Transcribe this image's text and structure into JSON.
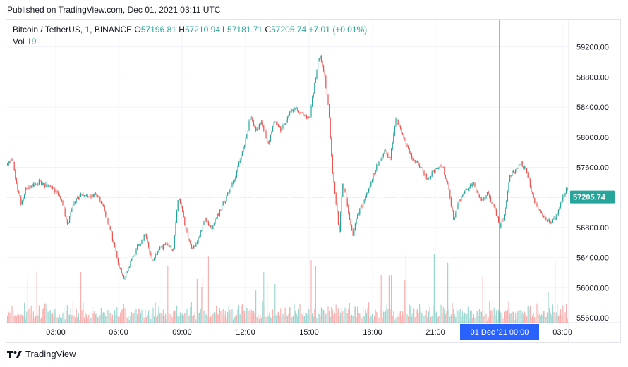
{
  "published": "Published on TradingView.com, Dec 01, 2021 03:11 UTC",
  "legend": {
    "symbol": "Bitcoin / TetherUS, 1, BINANCE",
    "o_label": "O",
    "o": "57196.81",
    "h_label": "H",
    "h": "57210.94",
    "l_label": "L",
    "l": "57181.71",
    "c_label": "C",
    "c": "57205.74",
    "change": "+7.01 (+0.01%)",
    "vol_label": "Vol",
    "vol": "19"
  },
  "colors": {
    "up": "#26a69a",
    "down": "#ef5350",
    "crosshair": "#2962ff",
    "price_tag": "#26a69a",
    "time_tag": "#2962ff"
  },
  "price_tag": "57205.74",
  "time_tag": "01 Dec '21   00:00",
  "footer": {
    "brand": "TradingView",
    "logo_icon": "tradingview-logo-icon"
  },
  "chart_data": {
    "type": "candlestick",
    "y_ticks": [
      "55600.00",
      "56000.00",
      "56400.00",
      "56800.00",
      "57200.00",
      "57600.00",
      "58000.00",
      "58400.00",
      "58800.00",
      "59200.00"
    ],
    "x_ticks": [
      "03:00",
      "06:00",
      "09:00",
      "12:00",
      "15:00",
      "18:00",
      "21:00",
      "03:00"
    ],
    "ylim": [
      55500,
      59400
    ],
    "last_price": 57205.74,
    "path": [
      [
        0,
        57650
      ],
      [
        8,
        57700
      ],
      [
        12,
        57400
      ],
      [
        20,
        57100
      ],
      [
        25,
        57300
      ],
      [
        35,
        57350
      ],
      [
        45,
        57400
      ],
      [
        55,
        57350
      ],
      [
        65,
        57300
      ],
      [
        75,
        57200
      ],
      [
        85,
        56850
      ],
      [
        95,
        57150
      ],
      [
        105,
        57250
      ],
      [
        115,
        57200
      ],
      [
        125,
        57250
      ],
      [
        135,
        57100
      ],
      [
        145,
        56800
      ],
      [
        155,
        56400
      ],
      [
        165,
        56100
      ],
      [
        175,
        56350
      ],
      [
        185,
        56550
      ],
      [
        195,
        56700
      ],
      [
        205,
        56350
      ],
      [
        215,
        56500
      ],
      [
        225,
        56600
      ],
      [
        235,
        56500
      ],
      [
        242,
        57200
      ],
      [
        248,
        57000
      ],
      [
        255,
        56700
      ],
      [
        262,
        56500
      ],
      [
        270,
        56650
      ],
      [
        280,
        56900
      ],
      [
        290,
        56800
      ],
      [
        300,
        57000
      ],
      [
        310,
        57200
      ],
      [
        320,
        57400
      ],
      [
        330,
        57700
      ],
      [
        338,
        58000
      ],
      [
        345,
        58300
      ],
      [
        352,
        58100
      ],
      [
        360,
        58200
      ],
      [
        370,
        57900
      ],
      [
        378,
        58200
      ],
      [
        388,
        58100
      ],
      [
        398,
        58300
      ],
      [
        408,
        58400
      ],
      [
        418,
        58300
      ],
      [
        428,
        58250
      ],
      [
        435,
        58700
      ],
      [
        442,
        59100
      ],
      [
        448,
        58900
      ],
      [
        455,
        58400
      ],
      [
        460,
        57600
      ],
      [
        465,
        57200
      ],
      [
        470,
        56700
      ],
      [
        475,
        57400
      ],
      [
        480,
        57200
      ],
      [
        485,
        56900
      ],
      [
        490,
        56700
      ],
      [
        495,
        56950
      ],
      [
        505,
        57150
      ],
      [
        515,
        57400
      ],
      [
        525,
        57650
      ],
      [
        535,
        57800
      ],
      [
        542,
        57700
      ],
      [
        550,
        58250
      ],
      [
        558,
        58100
      ],
      [
        565,
        57900
      ],
      [
        575,
        57700
      ],
      [
        585,
        57600
      ],
      [
        595,
        57450
      ],
      [
        605,
        57550
      ],
      [
        615,
        57650
      ],
      [
        625,
        57350
      ],
      [
        632,
        56900
      ],
      [
        640,
        57150
      ],
      [
        650,
        57300
      ],
      [
        660,
        57400
      ],
      [
        670,
        57150
      ],
      [
        680,
        57250
      ],
      [
        690,
        57050
      ],
      [
        698,
        56800
      ],
      [
        705,
        57000
      ],
      [
        712,
        57500
      ],
      [
        720,
        57550
      ],
      [
        728,
        57650
      ],
      [
        735,
        57550
      ],
      [
        745,
        57200
      ],
      [
        752,
        57050
      ],
      [
        760,
        56950
      ],
      [
        770,
        56850
      ],
      [
        778,
        56950
      ],
      [
        785,
        57150
      ],
      [
        792,
        57300
      ],
      [
        800,
        57210
      ]
    ]
  }
}
